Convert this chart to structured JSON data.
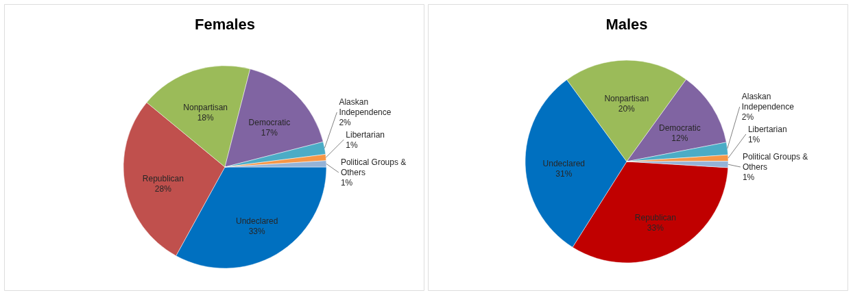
{
  "chart_data": [
    {
      "type": "pie",
      "title": "Females",
      "categories": [
        "Undeclared",
        "Republican",
        "Nonpartisan",
        "Democratic",
        "Alaskan Independence",
        "Libertarian",
        "Political Groups & Others"
      ],
      "values": [
        33,
        28,
        18,
        17,
        2,
        1,
        1
      ],
      "value_labels": [
        "33%",
        "28%",
        "18%",
        "17%",
        "2%",
        "1%",
        "1%"
      ],
      "colors": [
        "#0070c0",
        "#c0504d",
        "#9bbb59",
        "#8064a2",
        "#4bacc6",
        "#f79646",
        "#95b3d7"
      ],
      "legend": false
    },
    {
      "type": "pie",
      "title": "Males",
      "categories": [
        "Republican",
        "Undeclared",
        "Nonpartisan",
        "Democratic",
        "Alaskan Independence",
        "Libertarian",
        "Political Groups & Others"
      ],
      "values": [
        33,
        31,
        20,
        12,
        2,
        1,
        1
      ],
      "value_labels": [
        "33%",
        "31%",
        "20%",
        "12%",
        "2%",
        "1%",
        "1%"
      ],
      "colors": [
        "#c00000",
        "#0070c0",
        "#9bbb59",
        "#8064a2",
        "#4bacc6",
        "#f79646",
        "#95b3d7"
      ],
      "legend": false
    }
  ]
}
